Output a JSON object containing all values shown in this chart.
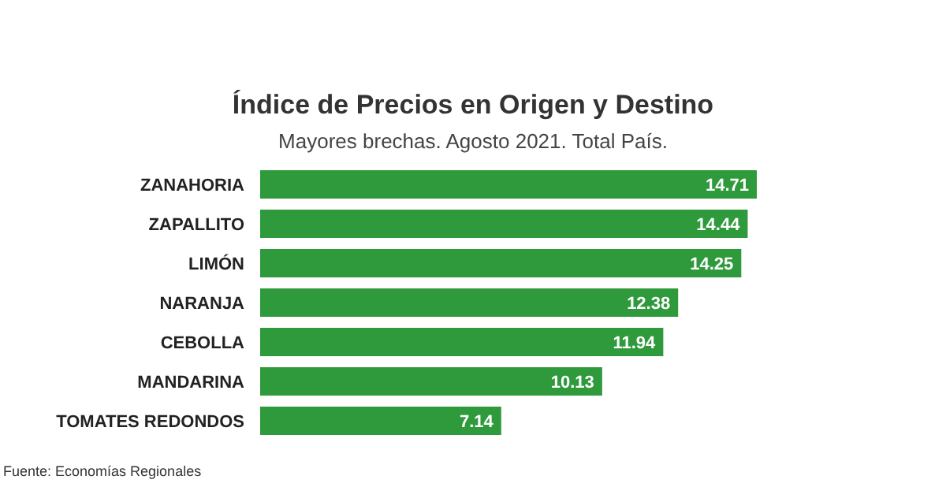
{
  "chart_data": {
    "type": "bar",
    "orientation": "horizontal",
    "title": "Índice de Precios en Origen y Destino",
    "subtitle": "Mayores brechas. Agosto 2021. Total País.",
    "categories": [
      "ZANAHORIA",
      "ZAPALLITO",
      "LIMÓN",
      "NARANJA",
      "CEBOLLA",
      "MANDARINA",
      "TOMATES REDONDOS"
    ],
    "values": [
      14.71,
      14.44,
      14.25,
      12.38,
      11.94,
      10.13,
      7.14
    ],
    "color": "#2f9a3c",
    "data_labels": true,
    "annotations": [
      "Fuente: Economías Regionales"
    ]
  }
}
